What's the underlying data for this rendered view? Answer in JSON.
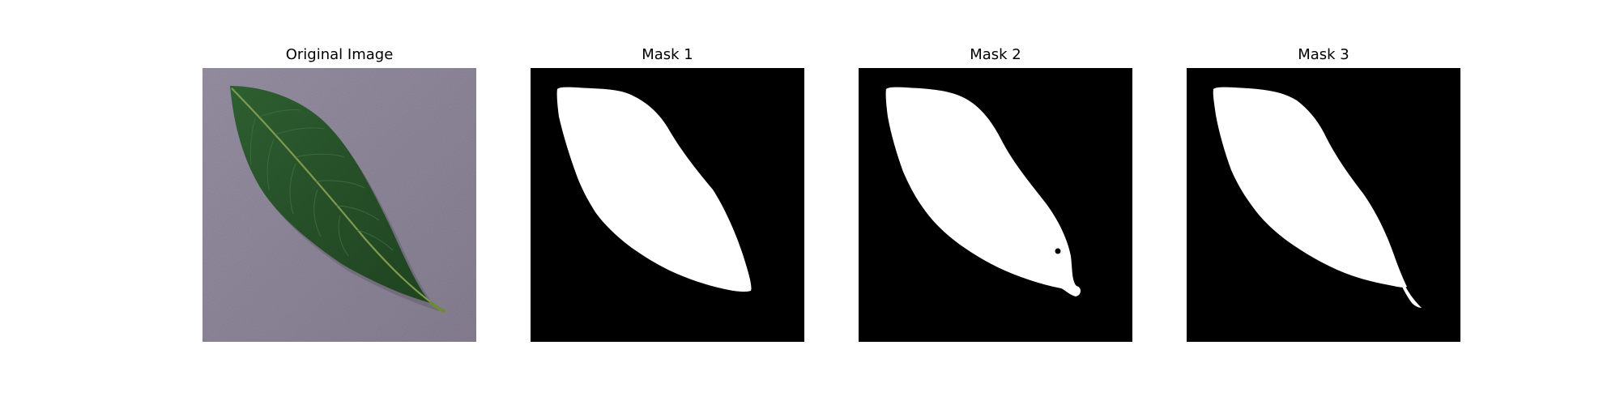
{
  "figure": {
    "panels": [
      {
        "title": "Original Image",
        "kind": "photo"
      },
      {
        "title": "Mask 1",
        "kind": "mask"
      },
      {
        "title": "Mask 2",
        "kind": "mask"
      },
      {
        "title": "Mask 3",
        "kind": "mask"
      }
    ]
  },
  "colors": {
    "background": "#ffffff",
    "photo_surface": "#8e8797",
    "leaf_dark": "#1f4a23",
    "leaf_mid": "#2f6131",
    "leaf_vein": "#7f9a4e",
    "leaf_stem": "#6f8a3a",
    "mask_bg": "#000000",
    "mask_fg": "#ffffff"
  }
}
